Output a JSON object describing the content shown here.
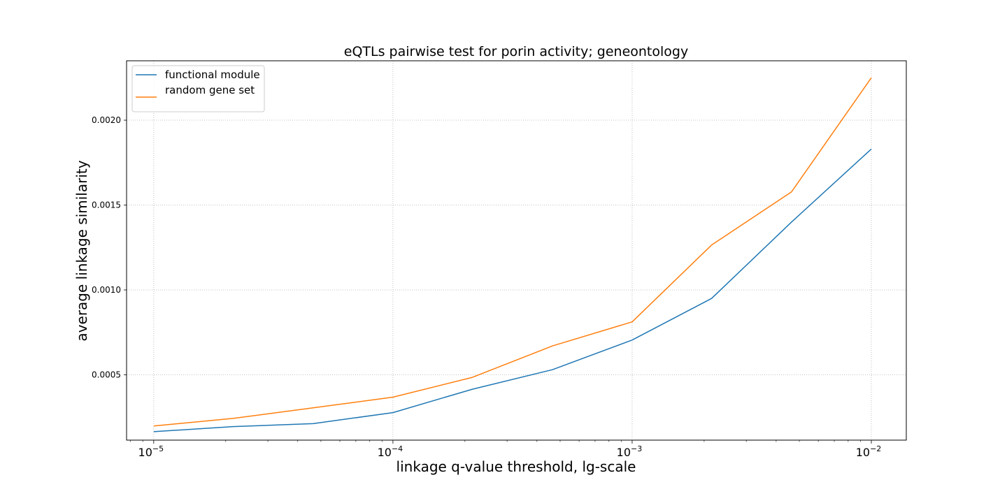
{
  "chart_data": {
    "type": "line",
    "title": "eQTLs pairwise test for porin activity; geneontology",
    "xlabel": "linkage q-value threshold, lg-scale",
    "ylabel": "average linkage similarity",
    "x_scale": "log10",
    "x": [
      1e-05,
      2.15e-05,
      4.64e-05,
      0.0001,
      0.000215,
      0.000464,
      0.001,
      0.00215,
      0.00464,
      0.01
    ],
    "xlim": [
      7.7e-06,
      0.014
    ],
    "ylim": [
      0.000115,
      0.00235
    ],
    "x_ticks": [
      {
        "value": 1e-05,
        "base": "10",
        "exp": "−5"
      },
      {
        "value": 0.0001,
        "base": "10",
        "exp": "−4"
      },
      {
        "value": 0.001,
        "base": "10",
        "exp": "−3"
      },
      {
        "value": 0.01,
        "base": "10",
        "exp": "−2"
      }
    ],
    "y_ticks": [
      {
        "value": 0.0005,
        "label": "0.0005"
      },
      {
        "value": 0.001,
        "label": "0.0010"
      },
      {
        "value": 0.0015,
        "label": "0.0015"
      },
      {
        "value": 0.002,
        "label": "0.0020"
      }
    ],
    "grid": true,
    "legend_position": "top-left",
    "series": [
      {
        "name": "functional module",
        "color": "#1f77b4",
        "values": [
          0.000165,
          0.000195,
          0.000212,
          0.000277,
          0.000415,
          0.00053,
          0.000705,
          0.00095,
          0.0014,
          0.00183
        ]
      },
      {
        "name": "random gene set",
        "color": "#ff7f0e",
        "values": [
          0.000198,
          0.000243,
          0.000305,
          0.000368,
          0.000485,
          0.00067,
          0.000812,
          0.001265,
          0.001578,
          0.00225
        ]
      }
    ]
  }
}
